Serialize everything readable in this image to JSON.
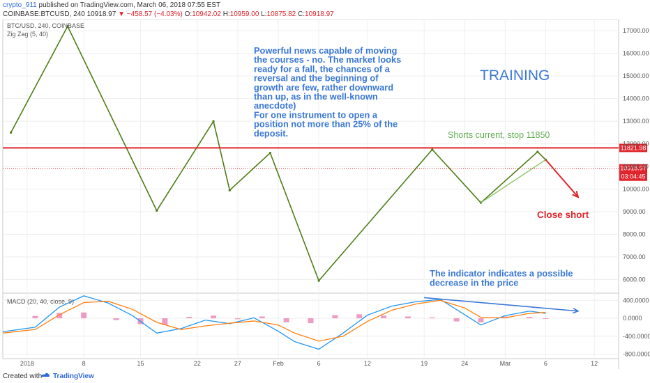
{
  "header": {
    "author": "crypto_911",
    "published": "published on TradingView.com, March 06, 2018 07:55 EST",
    "symbol": "COINBASE:BTCUSD, 240",
    "last": "10918.97",
    "change": "−458.57 (−4.03%)",
    "open_label": "O:",
    "open": "10942.02",
    "high_label": "H:",
    "high": "10959.00",
    "low_label": "L:",
    "low": "10875.82",
    "close_label": "C:",
    "close": "10918.97"
  },
  "footer": {
    "created_with": "Created with",
    "brand": "TradingView"
  },
  "chart_data": [
    {
      "type": "line",
      "panel": "price",
      "title": "BTC/USD, 240, COINBASE",
      "indicator": "Zig Zag (5, 40)",
      "y_ticks": [
        6000,
        7000,
        8000,
        9000,
        10000,
        11000,
        12000,
        13000,
        14000,
        15000,
        16000,
        17000
      ],
      "y_tick_labels": [
        "6000.00",
        "7000.00",
        "8000.00",
        "9000.00",
        "10000.00",
        "11000.00",
        "12000.00",
        "13000.00",
        "14000.00",
        "15000.00",
        "16000.00",
        "17000.00"
      ],
      "ylim": [
        5400,
        17500
      ],
      "x_tick_labels": [
        "2018",
        "8",
        "15",
        "22",
        "27",
        "Feb",
        "6",
        "12",
        "19",
        "24",
        "Mar",
        "6",
        "12"
      ],
      "x_ticks": [
        "2018-01-01",
        "2018-01-08",
        "2018-01-15",
        "2018-01-22",
        "2018-01-27",
        "2018-02-01",
        "2018-02-06",
        "2018-02-12",
        "2018-02-19",
        "2018-02-24",
        "2018-03-01",
        "2018-03-06",
        "2018-03-12"
      ],
      "xlim": [
        "2017-12-29",
        "2018-03-15"
      ],
      "zigzag": {
        "x": [
          "2017-12-30",
          "2018-01-06",
          "2018-01-17",
          "2018-01-24",
          "2018-01-26",
          "2018-01-31",
          "2018-02-06",
          "2018-02-20",
          "2018-02-26",
          "2018-03-05",
          "2018-03-06"
        ],
        "y": [
          12500,
          17200,
          9050,
          13000,
          9950,
          11600,
          5950,
          11750,
          9400,
          11650,
          11300
        ]
      },
      "trend_line_green": {
        "x": [
          "2018-02-26",
          "2018-03-06"
        ],
        "y": [
          9400,
          11300
        ]
      },
      "horizontal_lines": [
        {
          "value": 11821.98,
          "label": "11821.98",
          "color": "#e0242b",
          "style": "solid"
        },
        {
          "value": 10918.97,
          "label": "10918.97",
          "sublabel": "03:04:45",
          "color": "#e0242b",
          "style": "dotted"
        }
      ],
      "arrow": {
        "from": {
          "x": "2018-03-06",
          "y": 11300
        },
        "to": {
          "x": "2018-03-10",
          "y": 9650
        },
        "color": "#e0242b"
      },
      "annotations": [
        {
          "text": "Powerful news capable of moving\nthe courses - no. The market looks\nready for a fall, the chances of a\nreversal and the beginning of\ngrowth are few, rather downward\nthan up, as in the well-known\nanecdote)\nFor one instrument to open a\nposition not more than 25% of the\ndeposit.",
          "color": "#3a78d6"
        },
        {
          "text": "TRAINING",
          "color": "#3a78d6"
        },
        {
          "text": "Shorts current, stop 11850",
          "color": "#5fae4f"
        },
        {
          "text": "Close short",
          "color": "#e0242b"
        },
        {
          "text": "The indicator indicates a possible\ndecrease in the price",
          "color": "#3a78d6"
        }
      ]
    },
    {
      "type": "line",
      "panel": "macd",
      "title": "MACD (20, 40, close, 9)",
      "y_ticks": [
        -800,
        -400,
        0,
        400
      ],
      "y_tick_labels": [
        "-800.0000",
        "-400.0000",
        "0.0000",
        "400.0000"
      ],
      "ylim": [
        -900,
        560
      ],
      "series": [
        {
          "color": "#2196f3",
          "x": [
            "2017-12-29",
            "2018-01-02",
            "2018-01-05",
            "2018-01-08",
            "2018-01-11",
            "2018-01-14",
            "2018-01-17",
            "2018-01-20",
            "2018-01-23",
            "2018-01-26",
            "2018-01-29",
            "2018-02-01",
            "2018-02-03",
            "2018-02-06",
            "2018-02-09",
            "2018-02-12",
            "2018-02-15",
            "2018-02-18",
            "2018-02-21",
            "2018-02-24",
            "2018-02-26",
            "2018-03-01",
            "2018-03-04",
            "2018-03-06"
          ],
          "y": [
            -300,
            -200,
            250,
            500,
            340,
            60,
            -330,
            -230,
            -40,
            -120,
            10,
            -290,
            -520,
            -690,
            -330,
            70,
            270,
            370,
            420,
            80,
            -150,
            60,
            160,
            110
          ]
        },
        {
          "color": "#ff7f0e",
          "x": [
            "2017-12-29",
            "2018-01-02",
            "2018-01-05",
            "2018-01-08",
            "2018-01-11",
            "2018-01-14",
            "2018-01-17",
            "2018-01-20",
            "2018-01-23",
            "2018-01-26",
            "2018-01-29",
            "2018-02-01",
            "2018-02-03",
            "2018-02-06",
            "2018-02-09",
            "2018-02-12",
            "2018-02-15",
            "2018-02-18",
            "2018-02-21",
            "2018-02-24",
            "2018-02-26",
            "2018-03-01",
            "2018-03-04",
            "2018-03-06"
          ],
          "y": [
            -330,
            -250,
            80,
            350,
            380,
            200,
            -90,
            -250,
            -170,
            -110,
            -60,
            -150,
            -330,
            -510,
            -400,
            -70,
            180,
            320,
            400,
            230,
            20,
            10,
            110,
            130
          ]
        }
      ],
      "histogram": [
        {
          "x": "2018-01-02",
          "y": 50
        },
        {
          "x": "2018-01-05",
          "y": 120
        },
        {
          "x": "2018-01-08",
          "y": 130
        },
        {
          "x": "2018-01-12",
          "y": -40
        },
        {
          "x": "2018-01-15",
          "y": -130
        },
        {
          "x": "2018-01-18",
          "y": -150
        },
        {
          "x": "2018-01-21",
          "y": 30
        },
        {
          "x": "2018-01-24",
          "y": 60
        },
        {
          "x": "2018-01-27",
          "y": -20
        },
        {
          "x": "2018-01-30",
          "y": 40
        },
        {
          "x": "2018-02-02",
          "y": -90
        },
        {
          "x": "2018-02-05",
          "y": -110
        },
        {
          "x": "2018-02-08",
          "y": 70
        },
        {
          "x": "2018-02-11",
          "y": 90
        },
        {
          "x": "2018-02-14",
          "y": 60
        },
        {
          "x": "2018-02-17",
          "y": 40
        },
        {
          "x": "2018-02-20",
          "y": 20
        },
        {
          "x": "2018-02-23",
          "y": -70
        },
        {
          "x": "2018-02-26",
          "y": -90
        },
        {
          "x": "2018-03-01",
          "y": 40
        },
        {
          "x": "2018-03-04",
          "y": 30
        },
        {
          "x": "2018-03-06",
          "y": -10
        }
      ],
      "trend_line": {
        "x": [
          "2018-02-19",
          "2018-03-10"
        ],
        "y": [
          460,
          160
        ],
        "color": "#3a78d6"
      }
    }
  ]
}
